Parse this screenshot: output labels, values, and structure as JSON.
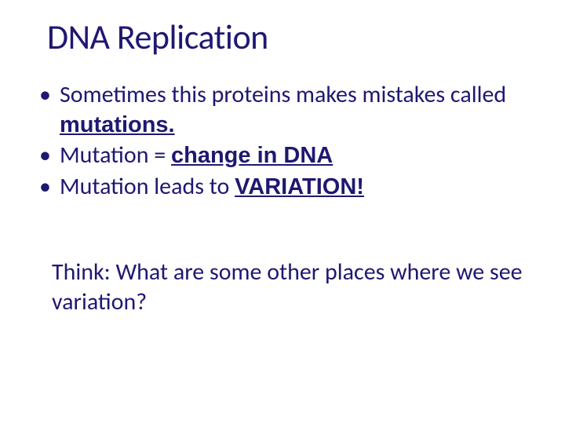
{
  "colors": {
    "title": "#1f1871",
    "body": "#1f1871",
    "background": "#ffffff"
  },
  "title": "DNA Replication",
  "bullets": [
    {
      "pre": "Sometimes this proteins makes mistakes called ",
      "emph": "mutations.",
      "post": ""
    },
    {
      "pre": "Mutation = ",
      "emph": "change in DNA",
      "post": ""
    },
    {
      "pre": "Mutation leads to ",
      "emph": "VARIATION!",
      "post": ""
    }
  ],
  "think": "Think: What are some other places where we see variation?"
}
